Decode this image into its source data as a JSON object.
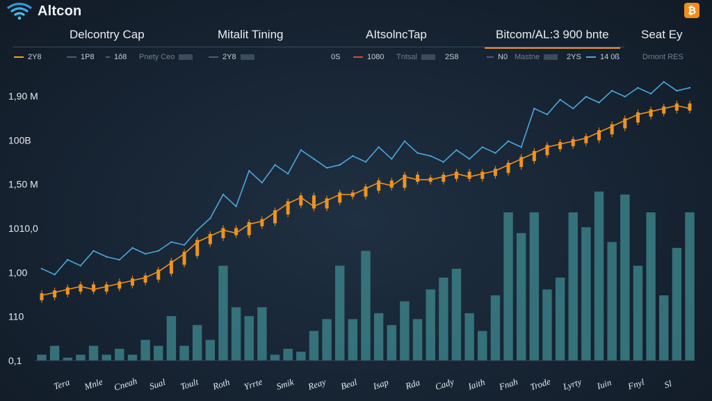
{
  "app": {
    "title": "Altcon"
  },
  "tabs": [
    {
      "label": "Delcontry Cap",
      "active": false
    },
    {
      "label": "Mitalit Tining",
      "active": false
    },
    {
      "label": "AItsolncTap",
      "active": false
    },
    {
      "label": "Bitcom/AL:3 900 bnte",
      "active": true
    },
    {
      "label": "Seat Ey",
      "active": false
    }
  ],
  "legend": [
    {
      "label": "2Y8",
      "color": "#f5a623",
      "line": true
    },
    {
      "label": "1P8",
      "color": "#4a6070",
      "line": true
    },
    {
      "label": "1ô8",
      "color": "#4a6070",
      "line": true
    },
    {
      "label": "Pnety Ceo",
      "color": "#6f8093",
      "line": false,
      "muted": true
    },
    {
      "label": "2Y8",
      "color": "#4a6070",
      "line": true
    },
    {
      "label": "0S",
      "color": "#4a6070",
      "line": true
    },
    {
      "label": "1080",
      "color": "#e04a3a",
      "line": true
    },
    {
      "label": "Tntsal",
      "color": "#6f8093",
      "line": false,
      "muted": true
    },
    {
      "label": "2S8",
      "color": "#4a6070",
      "line": true
    },
    {
      "label": "N0",
      "color": "#4a6070",
      "line": true
    },
    {
      "label": "Mastne",
      "color": "#6f8093",
      "line": false,
      "muted": true
    },
    {
      "label": "2YS",
      "color": "#4a6070",
      "line": true
    },
    {
      "label": "14 0ß",
      "color": "#4aa8e0",
      "line": true
    },
    {
      "label": "Drnont RES",
      "color": "#6f8093",
      "line": false,
      "muted": true
    }
  ],
  "colors": {
    "accent": "#e9962b",
    "price_line": "#4aa8e0",
    "candles": "#f0921e",
    "volume": "#3b7f86",
    "brand_badge": "#f28c1c"
  },
  "icons": {
    "logo": "wifi-signal-icon",
    "badge": "bitcoin-icon"
  },
  "chart_data": {
    "type": "line",
    "y_ticks": [
      "1,90 M",
      "100B",
      "1,50 M",
      "1010,0",
      "1,00",
      "110",
      "0,1"
    ],
    "x_ticks": [
      "Tera",
      "Mnle",
      "Cneah",
      "Sual",
      "Toult",
      "Roth",
      "Yrrte",
      "Smik",
      "Reay",
      "Beal",
      "Isap",
      "Rda",
      "Cady",
      "Iaith",
      "Fnah",
      "Trode",
      "Lyrty",
      "Iuin",
      "Fnyl",
      "Sl"
    ],
    "ylim": [
      0,
      100
    ],
    "grid": false,
    "series": [
      {
        "name": "2Y8",
        "style": "line",
        "x": [
          0,
          2,
          4,
          6,
          8,
          10,
          12,
          14,
          16,
          18,
          20,
          22,
          24,
          26,
          28,
          30,
          32,
          34,
          36,
          38,
          40,
          42,
          44,
          46,
          48,
          50,
          52,
          54,
          56,
          58,
          60,
          62,
          64,
          66,
          68,
          70,
          72,
          74,
          76,
          78,
          80,
          82,
          84,
          86,
          88,
          90,
          92,
          94,
          96,
          98,
          100
        ],
        "values": [
          31,
          29,
          34,
          32,
          37,
          35,
          34,
          38,
          36,
          37,
          40,
          39,
          44,
          48,
          56,
          52,
          64,
          60,
          66,
          63,
          71,
          68,
          65,
          66,
          69,
          67,
          72,
          68,
          74,
          70,
          69,
          67,
          71,
          68,
          72,
          70,
          74,
          72,
          85,
          83,
          88,
          85,
          89,
          87,
          91,
          89,
          92,
          90,
          94,
          91,
          92
        ]
      },
      {
        "name": "1080",
        "style": "candlestick",
        "x": [
          0,
          2,
          4,
          6,
          8,
          10,
          12,
          14,
          16,
          18,
          20,
          22,
          24,
          26,
          28,
          30,
          32,
          34,
          36,
          38,
          40,
          42,
          44,
          46,
          48,
          50,
          52,
          54,
          56,
          58,
          60,
          62,
          64,
          66,
          68,
          70,
          72,
          74,
          76,
          78,
          80,
          82,
          84,
          86,
          88,
          90,
          92,
          94,
          96,
          98,
          100
        ],
        "values": [
          22,
          23,
          24,
          25,
          24,
          25,
          26,
          27,
          28,
          30,
          33,
          36,
          40,
          42,
          44,
          43,
          46,
          47,
          50,
          53,
          55,
          52,
          54,
          56,
          56,
          58,
          60,
          59,
          62,
          61,
          61,
          62,
          63,
          62,
          63,
          64,
          66,
          68,
          70,
          72,
          73,
          74,
          75,
          77,
          79,
          81,
          83,
          84,
          85,
          86,
          85
        ]
      },
      {
        "name": "2YS",
        "style": "bar",
        "x": [
          0,
          2,
          4,
          6,
          8,
          10,
          12,
          14,
          16,
          18,
          20,
          22,
          24,
          26,
          28,
          30,
          32,
          34,
          36,
          38,
          40,
          42,
          44,
          46,
          48,
          50,
          52,
          54,
          56,
          58,
          60,
          62,
          64,
          66,
          68,
          70,
          72,
          74,
          76,
          78,
          80,
          82,
          84,
          86,
          88,
          90,
          92,
          94,
          96,
          98,
          100
        ],
        "values": [
          2,
          5,
          1,
          2,
          5,
          2,
          4,
          2,
          7,
          5,
          15,
          5,
          12,
          7,
          32,
          18,
          15,
          18,
          2,
          4,
          3,
          10,
          14,
          32,
          14,
          37,
          16,
          12,
          20,
          14,
          24,
          28,
          31,
          16,
          10,
          22,
          50,
          43,
          50,
          24,
          28,
          50,
          45,
          57,
          40,
          56,
          32,
          50,
          22,
          38,
          50
        ]
      }
    ]
  }
}
